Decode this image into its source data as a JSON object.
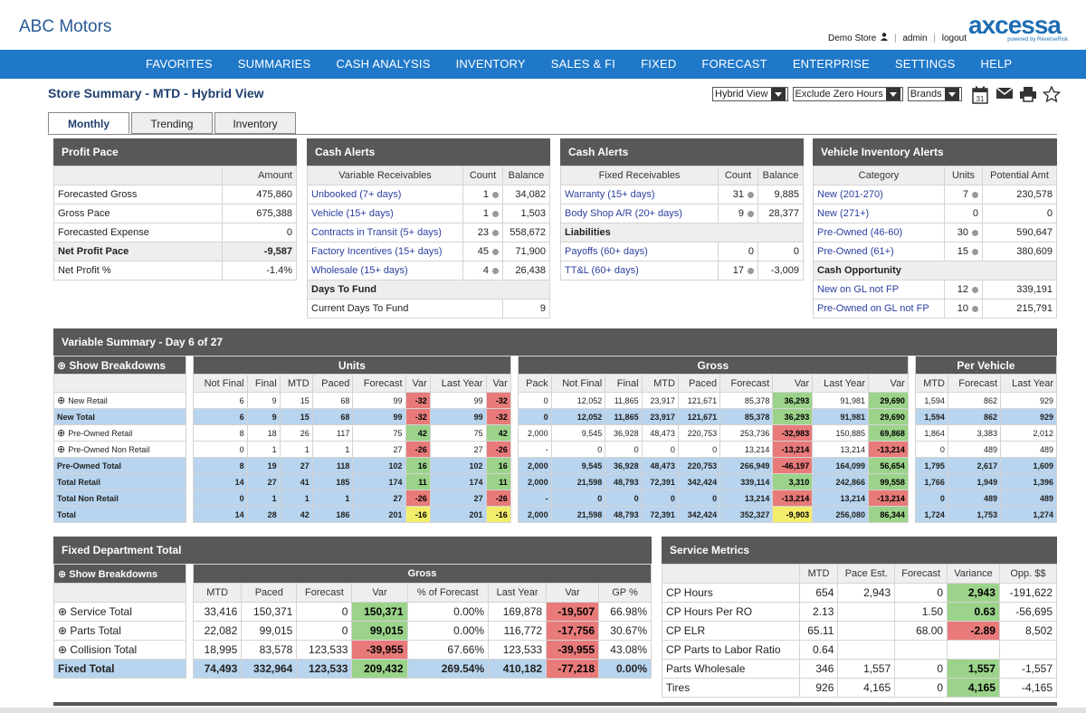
{
  "header": {
    "brand": "ABC Motors",
    "store": "Demo Store",
    "user": "admin",
    "logout": "logout",
    "logo_word": "axcessa",
    "logo_sub": "powered by ReverseRisk"
  },
  "nav": [
    "FAVORITES",
    "SUMMARIES",
    "CASH ANALYSIS",
    "INVENTORY",
    "SALES & FI",
    "FIXED",
    "FORECAST",
    "ENTERPRISE",
    "SETTINGS",
    "HELP"
  ],
  "page_title": "Store Summary - MTD - Hybrid View",
  "controls": {
    "view": "Hybrid View",
    "filter": "Exclude Zero Hours",
    "brands": "Brands",
    "calendar_day": "31"
  },
  "tabs": [
    "Monthly",
    "Trending",
    "Inventory"
  ],
  "profit_pace": {
    "title": "Profit Pace",
    "col_amount": "Amount",
    "rows": [
      {
        "label": "Forecasted Gross",
        "value": "475,860"
      },
      {
        "label": "Gross Pace",
        "value": "675,388"
      },
      {
        "label": "Forecasted Expense",
        "value": "0"
      },
      {
        "label": "Net Profit Pace",
        "value": "-9,587"
      },
      {
        "label": "Net Profit %",
        "value": "-1.4%"
      }
    ]
  },
  "cash_alerts_var": {
    "title": "Cash Alerts",
    "cols": [
      "Variable Receivables",
      "Count",
      "Balance"
    ],
    "rows": [
      {
        "label": "Unbooked (7+ days)",
        "count": "1",
        "balance": "34,082"
      },
      {
        "label": "Vehicle (15+ days)",
        "count": "1",
        "balance": "1,503"
      },
      {
        "label": "Contracts in Transit (5+ days)",
        "count": "23",
        "balance": "558,672"
      },
      {
        "label": "Factory Incentives (15+ days)",
        "count": "45",
        "balance": "71,900"
      },
      {
        "label": "Wholesale (15+ days)",
        "count": "4",
        "balance": "26,438"
      }
    ],
    "section": "Days To Fund",
    "fund_label": "Current Days To Fund",
    "fund_value": "9"
  },
  "cash_alerts_fixed": {
    "title": "Cash Alerts",
    "cols": [
      "Fixed Receivables",
      "Count",
      "Balance"
    ],
    "rows": [
      {
        "label": "Warranty (15+ days)",
        "count": "31",
        "balance": "9,885"
      },
      {
        "label": "Body Shop A/R (20+ days)",
        "count": "9",
        "balance": "28,377"
      }
    ],
    "section": "Liabilities",
    "liab_rows": [
      {
        "label": "Payoffs (60+ days)",
        "count": "0",
        "balance": "0"
      },
      {
        "label": "TT&L (60+ days)",
        "count": "17",
        "balance": "-3,009"
      }
    ]
  },
  "vehicle_alerts": {
    "title": "Vehicle Inventory Alerts",
    "cols": [
      "Category",
      "Units",
      "Potential Amt"
    ],
    "rows": [
      {
        "label": "New (201-270)",
        "units": "7",
        "amt": "230,578"
      },
      {
        "label": "New (271+)",
        "units": "0",
        "amt": "0"
      },
      {
        "label": "Pre-Owned (46-60)",
        "units": "30",
        "amt": "590,647"
      },
      {
        "label": "Pre-Owned (61+)",
        "units": "15",
        "amt": "380,609"
      }
    ],
    "section": "Cash Opportunity",
    "opp_rows": [
      {
        "label": "New on GL not FP",
        "units": "12",
        "amt": "339,191"
      },
      {
        "label": "Pre-Owned on GL not FP",
        "units": "10",
        "amt": "215,791"
      }
    ]
  },
  "variable_summary": {
    "title": "Variable Summary - Day 6 of 27",
    "show_breakdowns": "Show Breakdowns",
    "groups": [
      "Units",
      "Gross",
      "Per Vehicle"
    ],
    "unit_cols": [
      "Not Final",
      "Final",
      "MTD",
      "Paced",
      "Forecast",
      "Var",
      "Last Year",
      "Var"
    ],
    "gross_cols": [
      "Pack",
      "Not Final",
      "Final",
      "MTD",
      "Paced",
      "Forecast",
      "Var",
      "Last Year",
      "Var"
    ],
    "pv_cols": [
      "MTD",
      "Forecast",
      "Last Year"
    ],
    "rows": [
      {
        "label": "New Retail",
        "expand": true,
        "total": false,
        "units": [
          "6",
          "9",
          "15",
          "68",
          "99",
          "-32",
          "99",
          "-32"
        ],
        "gross": [
          "0",
          "12,052",
          "11,865",
          "23,917",
          "121,671",
          "85,378",
          "36,293",
          "91,981",
          "29,690"
        ],
        "pv": [
          "1,594",
          "862",
          "929"
        ],
        "ucol": [
          "",
          "",
          "",
          "",
          "",
          "red",
          "",
          "red"
        ],
        "gcol": [
          "",
          "",
          "",
          "",
          "",
          "",
          "grn",
          "",
          "grn"
        ]
      },
      {
        "label": "New Total",
        "expand": false,
        "total": true,
        "units": [
          "6",
          "9",
          "15",
          "68",
          "99",
          "-32",
          "99",
          "-32"
        ],
        "gross": [
          "0",
          "12,052",
          "11,865",
          "23,917",
          "121,671",
          "85,378",
          "36,293",
          "91,981",
          "29,690"
        ],
        "pv": [
          "1,594",
          "862",
          "929"
        ],
        "ucol": [
          "",
          "",
          "",
          "",
          "",
          "red",
          "",
          "red"
        ],
        "gcol": [
          "",
          "",
          "",
          "",
          "",
          "",
          "grn",
          "",
          "grn"
        ]
      },
      {
        "label": "Pre-Owned Retail",
        "expand": true,
        "total": false,
        "units": [
          "8",
          "18",
          "26",
          "117",
          "75",
          "42",
          "75",
          "42"
        ],
        "gross": [
          "2,000",
          "9,545",
          "36,928",
          "48,473",
          "220,753",
          "253,736",
          "-32,983",
          "150,885",
          "69,868"
        ],
        "pv": [
          "1,864",
          "3,383",
          "2,012"
        ],
        "ucol": [
          "",
          "",
          "",
          "",
          "",
          "grn",
          "",
          "grn"
        ],
        "gcol": [
          "",
          "",
          "",
          "",
          "",
          "",
          "red",
          "",
          "grn"
        ]
      },
      {
        "label": "Pre-Owned Non Retail",
        "expand": true,
        "total": false,
        "units": [
          "0",
          "1",
          "1",
          "1",
          "27",
          "-26",
          "27",
          "-26"
        ],
        "gross": [
          "-",
          "0",
          "0",
          "0",
          "0",
          "13,214",
          "-13,214",
          "13,214",
          "-13,214"
        ],
        "pv": [
          "0",
          "489",
          "489"
        ],
        "ucol": [
          "",
          "",
          "",
          "",
          "",
          "red",
          "",
          "red"
        ],
        "gcol": [
          "",
          "",
          "",
          "",
          "",
          "",
          "red",
          "",
          "red"
        ]
      },
      {
        "label": "Pre-Owned Total",
        "expand": false,
        "total": true,
        "units": [
          "8",
          "19",
          "27",
          "118",
          "102",
          "16",
          "102",
          "16"
        ],
        "gross": [
          "2,000",
          "9,545",
          "36,928",
          "48,473",
          "220,753",
          "266,949",
          "-46,197",
          "164,099",
          "56,654"
        ],
        "pv": [
          "1,795",
          "2,617",
          "1,609"
        ],
        "ucol": [
          "",
          "",
          "",
          "",
          "",
          "grn",
          "",
          "grn"
        ],
        "gcol": [
          "",
          "",
          "",
          "",
          "",
          "",
          "red",
          "",
          "grn"
        ]
      },
      {
        "label": "Total Retail",
        "expand": false,
        "total": true,
        "units": [
          "14",
          "27",
          "41",
          "185",
          "174",
          "11",
          "174",
          "11"
        ],
        "gross": [
          "2,000",
          "21,598",
          "48,793",
          "72,391",
          "342,424",
          "339,114",
          "3,310",
          "242,866",
          "99,558"
        ],
        "pv": [
          "1,766",
          "1,949",
          "1,396"
        ],
        "ucol": [
          "",
          "",
          "",
          "",
          "",
          "grn",
          "",
          "grn"
        ],
        "gcol": [
          "",
          "",
          "",
          "",
          "",
          "",
          "grn",
          "",
          "grn"
        ]
      },
      {
        "label": "Total Non Retail",
        "expand": false,
        "total": true,
        "units": [
          "0",
          "1",
          "1",
          "1",
          "27",
          "-26",
          "27",
          "-26"
        ],
        "gross": [
          "-",
          "0",
          "0",
          "0",
          "0",
          "13,214",
          "-13,214",
          "13,214",
          "-13,214"
        ],
        "pv": [
          "0",
          "489",
          "489"
        ],
        "ucol": [
          "",
          "",
          "",
          "",
          "",
          "red",
          "",
          "red"
        ],
        "gcol": [
          "",
          "",
          "",
          "",
          "",
          "",
          "red",
          "",
          "red"
        ]
      },
      {
        "label": "Total",
        "expand": false,
        "total": true,
        "units": [
          "14",
          "28",
          "42",
          "186",
          "201",
          "-16",
          "201",
          "-16"
        ],
        "gross": [
          "2,000",
          "21,598",
          "48,793",
          "72,391",
          "342,424",
          "352,327",
          "-9,903",
          "256,080",
          "86,344"
        ],
        "pv": [
          "1,724",
          "1,753",
          "1,274"
        ],
        "ucol": [
          "",
          "",
          "",
          "",
          "",
          "yel",
          "",
          "yel"
        ],
        "gcol": [
          "",
          "",
          "",
          "",
          "",
          "",
          "yel",
          "",
          "grn"
        ]
      }
    ]
  },
  "fixed_total": {
    "title": "Fixed Department Total",
    "show_breakdowns": "Show Breakdowns",
    "group": "Gross",
    "cols": [
      "MTD",
      "Paced",
      "Forecast",
      "Var",
      "% of Forecast",
      "Last Year",
      "Var",
      "GP %"
    ],
    "rows": [
      {
        "label": "Service Total",
        "expand": true,
        "total": false,
        "vals": [
          "33,416",
          "150,371",
          "0",
          "150,371",
          "0.00%",
          "169,878",
          "-19,507",
          "66.98%"
        ],
        "col": [
          "",
          "",
          "",
          "grn",
          "",
          "",
          "red",
          ""
        ]
      },
      {
        "label": "Parts Total",
        "expand": true,
        "total": false,
        "vals": [
          "22,082",
          "99,015",
          "0",
          "99,015",
          "0.00%",
          "116,772",
          "-17,756",
          "30.67%"
        ],
        "col": [
          "",
          "",
          "",
          "grn",
          "",
          "",
          "red",
          ""
        ]
      },
      {
        "label": "Collision Total",
        "expand": true,
        "total": false,
        "vals": [
          "18,995",
          "83,578",
          "123,533",
          "-39,955",
          "67.66%",
          "123,533",
          "-39,955",
          "43.08%"
        ],
        "col": [
          "",
          "",
          "",
          "red",
          "",
          "",
          "red",
          ""
        ]
      },
      {
        "label": "Fixed Total",
        "expand": false,
        "total": true,
        "vals": [
          "74,493",
          "332,964",
          "123,533",
          "209,432",
          "269.54%",
          "410,182",
          "-77,218",
          "0.00%"
        ],
        "col": [
          "",
          "",
          "",
          "grn",
          "",
          "",
          "red",
          ""
        ]
      }
    ]
  },
  "service_metrics": {
    "title": "Service Metrics",
    "cols": [
      "MTD",
      "Pace Est.",
      "Forecast",
      "Variance",
      "Opp. $$"
    ],
    "rows": [
      {
        "label": "CP Hours",
        "vals": [
          "654",
          "2,943",
          "0",
          "2,943",
          "-191,622"
        ],
        "col": [
          "",
          "",
          "",
          "grn",
          ""
        ]
      },
      {
        "label": "CP Hours Per RO",
        "vals": [
          "2.13",
          "",
          "1.50",
          "0.63",
          "-56,695"
        ],
        "col": [
          "",
          "",
          "",
          "grn",
          ""
        ]
      },
      {
        "label": "CP ELR",
        "vals": [
          "65.11",
          "",
          "68.00",
          "-2.89",
          "8,502"
        ],
        "col": [
          "",
          "",
          "",
          "red",
          ""
        ]
      },
      {
        "label": "CP Parts to Labor Ratio",
        "vals": [
          "0.64",
          "",
          "",
          "",
          ""
        ],
        "col": [
          "",
          "",
          "",
          "",
          ""
        ]
      },
      {
        "label": "Parts Wholesale",
        "vals": [
          "346",
          "1,557",
          "0",
          "1,557",
          "-1,557"
        ],
        "col": [
          "",
          "",
          "",
          "grn",
          ""
        ]
      },
      {
        "label": "Tires",
        "vals": [
          "926",
          "4,165",
          "0",
          "4,165",
          "-4,165"
        ],
        "col": [
          "",
          "",
          "",
          "grn",
          ""
        ]
      }
    ]
  },
  "colors": {
    "nav": "#1f78c8",
    "panel_header": "#585858",
    "total_row": "#b8d4ee",
    "red": "#e87a7a",
    "green": "#9bd38a",
    "yellow": "#f3ee6a"
  }
}
